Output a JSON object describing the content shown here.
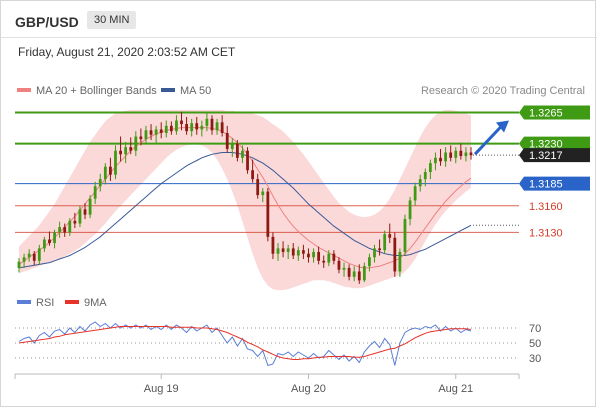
{
  "header": {
    "symbol": "GBP/USD",
    "timeframe": "30 MIN"
  },
  "datetime": "Friday, August 21, 2020 2:03:52 AM CET",
  "legend": {
    "ma20": {
      "label": "MA 20 + Bollinger Bands",
      "color": "#f08080"
    },
    "ma50": {
      "label": "MA 50",
      "color": "#3a5a96"
    },
    "credit": "Research © 2020 Trading Central"
  },
  "rsi_legend": {
    "rsi": {
      "label": "RSI",
      "color": "#5b7fd6"
    },
    "ma9": {
      "label": "9MA",
      "color": "#e8332a"
    }
  },
  "colors": {
    "green": "#3f9a14",
    "blue": "#2a64c8",
    "red": "#d23d2a",
    "up_candle": "#3f9a14",
    "down_candle": "#8c1a12",
    "band_fill": "#fbd9d9"
  },
  "chart_data": [
    {
      "type": "candlestick",
      "title": "GBP/USD 30 MIN",
      "x_ticks": [
        "Aug 19",
        "Aug 20",
        "Aug 21"
      ],
      "x_tick_index": [
        28,
        57,
        86
      ],
      "ylim": [
        1.3064,
        1.3278
      ],
      "levels": [
        {
          "value": 1.3265,
          "label": "1.3265",
          "kind": "resistance"
        },
        {
          "value": 1.323,
          "label": "1.3230",
          "kind": "resistance"
        },
        {
          "value": 1.3217,
          "label": "1.3217",
          "kind": "last"
        },
        {
          "value": 1.3185,
          "label": "1.3185",
          "kind": "pivot"
        },
        {
          "value": 1.316,
          "label": "1.3160",
          "kind": "support"
        },
        {
          "value": 1.313,
          "label": "1.3130",
          "kind": "support"
        }
      ],
      "last_price": 1.3217,
      "forecast": {
        "direction": "up",
        "target": 1.3265
      },
      "candles": [
        [
          1.309,
          1.3101,
          1.3085,
          1.3097
        ],
        [
          1.3097,
          1.3106,
          1.309,
          1.3102
        ],
        [
          1.3102,
          1.3111,
          1.3097,
          1.3106
        ],
        [
          1.3106,
          1.3109,
          1.3093,
          1.3098
        ],
        [
          1.3098,
          1.3116,
          1.3094,
          1.3112
        ],
        [
          1.3112,
          1.3125,
          1.3108,
          1.3122
        ],
        [
          1.3122,
          1.3131,
          1.3115,
          1.3118
        ],
        [
          1.3118,
          1.3133,
          1.3112,
          1.313
        ],
        [
          1.313,
          1.3142,
          1.3124,
          1.3136
        ],
        [
          1.3136,
          1.314,
          1.3125,
          1.313
        ],
        [
          1.313,
          1.3146,
          1.3126,
          1.3143
        ],
        [
          1.3143,
          1.3152,
          1.3135,
          1.314
        ],
        [
          1.314,
          1.316,
          1.3136,
          1.3156
        ],
        [
          1.3156,
          1.3163,
          1.3145,
          1.315
        ],
        [
          1.315,
          1.3172,
          1.3146,
          1.3168
        ],
        [
          1.3168,
          1.3187,
          1.3162,
          1.3182
        ],
        [
          1.3182,
          1.3196,
          1.3176,
          1.319
        ],
        [
          1.319,
          1.3208,
          1.3184,
          1.3204
        ],
        [
          1.3204,
          1.3214,
          1.3188,
          1.3195
        ],
        [
          1.3195,
          1.3228,
          1.319,
          1.3222
        ],
        [
          1.3222,
          1.3238,
          1.321,
          1.3218
        ],
        [
          1.3218,
          1.3232,
          1.3208,
          1.3226
        ],
        [
          1.3226,
          1.3237,
          1.3218,
          1.3222
        ],
        [
          1.3222,
          1.3244,
          1.3216,
          1.3238
        ],
        [
          1.3238,
          1.3247,
          1.3228,
          1.3235
        ],
        [
          1.3235,
          1.325,
          1.323,
          1.3245
        ],
        [
          1.3245,
          1.3252,
          1.3234,
          1.324
        ],
        [
          1.324,
          1.325,
          1.3231,
          1.3246
        ],
        [
          1.3246,
          1.3254,
          1.3236,
          1.3242
        ],
        [
          1.3242,
          1.3256,
          1.3237,
          1.325
        ],
        [
          1.325,
          1.3255,
          1.324,
          1.3244
        ],
        [
          1.3244,
          1.3262,
          1.324,
          1.3256
        ],
        [
          1.3256,
          1.3266,
          1.3245,
          1.3252
        ],
        [
          1.3252,
          1.326,
          1.324,
          1.3244
        ],
        [
          1.3244,
          1.3258,
          1.3238,
          1.3253
        ],
        [
          1.3253,
          1.326,
          1.324,
          1.3246
        ],
        [
          1.3246,
          1.3256,
          1.3238,
          1.325
        ],
        [
          1.325,
          1.3266,
          1.3244,
          1.3258
        ],
        [
          1.3258,
          1.3262,
          1.324,
          1.3245
        ],
        [
          1.3245,
          1.3258,
          1.324,
          1.3254
        ],
        [
          1.3254,
          1.3262,
          1.3238,
          1.3242
        ],
        [
          1.3242,
          1.325,
          1.322,
          1.3224
        ],
        [
          1.3224,
          1.3236,
          1.3215,
          1.323
        ],
        [
          1.323,
          1.3234,
          1.321,
          1.3214
        ],
        [
          1.3214,
          1.3228,
          1.3208,
          1.3222
        ],
        [
          1.3222,
          1.3226,
          1.3196,
          1.32
        ],
        [
          1.32,
          1.3212,
          1.3186,
          1.319
        ],
        [
          1.319,
          1.3196,
          1.3168,
          1.3172
        ],
        [
          1.3172,
          1.318,
          1.3164,
          1.3176
        ],
        [
          1.3176,
          1.318,
          1.312,
          1.3125
        ],
        [
          1.3125,
          1.313,
          1.31,
          1.3106
        ],
        [
          1.3106,
          1.3118,
          1.3098,
          1.3112
        ],
        [
          1.3112,
          1.312,
          1.3102,
          1.3108
        ],
        [
          1.3108,
          1.3116,
          1.31,
          1.3112
        ],
        [
          1.3112,
          1.3118,
          1.31,
          1.3104
        ],
        [
          1.3104,
          1.3114,
          1.3098,
          1.311
        ],
        [
          1.311,
          1.3116,
          1.31,
          1.3106
        ],
        [
          1.3106,
          1.3112,
          1.3096,
          1.3102
        ],
        [
          1.3102,
          1.3112,
          1.3096,
          1.3108
        ],
        [
          1.3108,
          1.3114,
          1.3094,
          1.3098
        ],
        [
          1.3098,
          1.3104,
          1.309,
          1.3096
        ],
        [
          1.3096,
          1.311,
          1.3092,
          1.3106
        ],
        [
          1.3106,
          1.311,
          1.3094,
          1.3098
        ],
        [
          1.3098,
          1.3102,
          1.3084,
          1.3088
        ],
        [
          1.3088,
          1.3096,
          1.308,
          1.309
        ],
        [
          1.309,
          1.3094,
          1.3076,
          1.308
        ],
        [
          1.308,
          1.3092,
          1.3075,
          1.3086
        ],
        [
          1.3086,
          1.3094,
          1.3072,
          1.3076
        ],
        [
          1.3076,
          1.3096,
          1.3074,
          1.3092
        ],
        [
          1.3092,
          1.3106,
          1.3086,
          1.3102
        ],
        [
          1.3102,
          1.3116,
          1.3096,
          1.3112
        ],
        [
          1.3112,
          1.3122,
          1.3104,
          1.311
        ],
        [
          1.311,
          1.3132,
          1.3106,
          1.3128
        ],
        [
          1.3128,
          1.314,
          1.3118,
          1.3124
        ],
        [
          1.3124,
          1.313,
          1.308,
          1.3086
        ],
        [
          1.3086,
          1.3112,
          1.308,
          1.3108
        ],
        [
          1.3108,
          1.315,
          1.3104,
          1.3145
        ],
        [
          1.3145,
          1.317,
          1.3138,
          1.3166
        ],
        [
          1.3166,
          1.3186,
          1.316,
          1.3182
        ],
        [
          1.3182,
          1.3195,
          1.3176,
          1.319
        ],
        [
          1.319,
          1.3202,
          1.3182,
          1.3198
        ],
        [
          1.3198,
          1.3212,
          1.319,
          1.3208
        ],
        [
          1.3208,
          1.322,
          1.32,
          1.3214
        ],
        [
          1.3214,
          1.3224,
          1.3205,
          1.321
        ],
        [
          1.321,
          1.3226,
          1.3204,
          1.322
        ],
        [
          1.322,
          1.3228,
          1.321,
          1.3214
        ],
        [
          1.3214,
          1.3226,
          1.3208,
          1.3222
        ],
        [
          1.3222,
          1.323,
          1.3212,
          1.3216
        ],
        [
          1.3216,
          1.3226,
          1.321,
          1.322
        ],
        [
          1.322,
          1.3226,
          1.3212,
          1.3217
        ]
      ],
      "ma20": [
        1.3094,
        1.3098,
        1.3102,
        1.3106,
        1.311,
        1.3114,
        1.3119,
        1.3124,
        1.313,
        1.3136,
        1.3142,
        1.3148,
        1.3155,
        1.3162,
        1.3169,
        1.3176,
        1.3183,
        1.319,
        1.3197,
        1.3204,
        1.321,
        1.3216,
        1.3222,
        1.3227,
        1.3231,
        1.3235,
        1.3238,
        1.3241,
        1.3243,
        1.3245,
        1.3246,
        1.3247,
        1.3248,
        1.3248,
        1.3248,
        1.3248,
        1.3248,
        1.3248,
        1.3247,
        1.3246,
        1.3244,
        1.324,
        1.3236,
        1.3231,
        1.3225,
        1.3218,
        1.321,
        1.3201,
        1.3192,
        1.3182,
        1.3171,
        1.3161,
        1.3152,
        1.3144,
        1.3137,
        1.3131,
        1.3126,
        1.3121,
        1.3117,
        1.3113,
        1.311,
        1.3107,
        1.3104,
        1.3101,
        1.3098,
        1.3095,
        1.3093,
        1.3091,
        1.309,
        1.309,
        1.3091,
        1.3092,
        1.3094,
        1.3096,
        1.3098,
        1.3101,
        1.3106,
        1.3112,
        1.3119,
        1.3127,
        1.3135,
        1.3143,
        1.3151,
        1.3158,
        1.3165,
        1.3171,
        1.3177,
        1.3182,
        1.3187,
        1.3191
      ],
      "bb_upper": [
        1.3114,
        1.312,
        1.3126,
        1.3132,
        1.3138,
        1.3146,
        1.3154,
        1.3162,
        1.3172,
        1.3182,
        1.3192,
        1.3202,
        1.3212,
        1.3222,
        1.3232,
        1.324,
        1.3248,
        1.3255,
        1.326,
        1.3264,
        1.3266,
        1.3267,
        1.3268,
        1.3268,
        1.3268,
        1.3268,
        1.3268,
        1.3268,
        1.3268,
        1.3268,
        1.3268,
        1.3268,
        1.3268,
        1.3268,
        1.3268,
        1.3268,
        1.3268,
        1.3268,
        1.3268,
        1.3268,
        1.3268,
        1.3267,
        1.3267,
        1.3266,
        1.3266,
        1.3265,
        1.3264,
        1.3262,
        1.326,
        1.3256,
        1.3252,
        1.3248,
        1.3244,
        1.3238,
        1.3232,
        1.3225,
        1.3218,
        1.321,
        1.3202,
        1.3194,
        1.3186,
        1.3178,
        1.317,
        1.3163,
        1.3158,
        1.3153,
        1.315,
        1.3148,
        1.3147,
        1.3148,
        1.315,
        1.3154,
        1.316,
        1.3168,
        1.3178,
        1.319,
        1.3202,
        1.3214,
        1.3226,
        1.3238,
        1.3248,
        1.3256,
        1.3262,
        1.3266,
        1.3268,
        1.3268,
        1.3267,
        1.3266,
        1.3264,
        1.3262
      ],
      "bb_lower": [
        1.3084,
        1.3086,
        1.3088,
        1.309,
        1.3092,
        1.3094,
        1.3096,
        1.3098,
        1.31,
        1.3103,
        1.3106,
        1.3109,
        1.3113,
        1.3118,
        1.3123,
        1.3128,
        1.3134,
        1.314,
        1.3147,
        1.3154,
        1.316,
        1.3166,
        1.3172,
        1.3178,
        1.3184,
        1.319,
        1.3196,
        1.3202,
        1.3208,
        1.3214,
        1.3219,
        1.3223,
        1.3226,
        1.3228,
        1.3229,
        1.3229,
        1.3228,
        1.3225,
        1.322,
        1.3212,
        1.3202,
        1.319,
        1.3176,
        1.316,
        1.3142,
        1.3124,
        1.3106,
        1.309,
        1.3078,
        1.307,
        1.3066,
        1.3065,
        1.3065,
        1.3066,
        1.3068,
        1.307,
        1.3072,
        1.3074,
        1.3076,
        1.3076,
        1.3076,
        1.3075,
        1.3073,
        1.3071,
        1.3069,
        1.3068,
        1.3067,
        1.3067,
        1.3068,
        1.307,
        1.3072,
        1.3074,
        1.3076,
        1.3078,
        1.308,
        1.3082,
        1.3086,
        1.3092,
        1.31,
        1.311,
        1.312,
        1.313,
        1.3139,
        1.3147,
        1.3154,
        1.316,
        1.3166,
        1.3171,
        1.3176,
        1.318
      ],
      "ma50": [
        1.309,
        1.3091,
        1.3092,
        1.3093,
        1.3094,
        1.3095,
        1.3096,
        1.3098,
        1.31,
        1.3102,
        1.3104,
        1.3107,
        1.311,
        1.3113,
        1.3117,
        1.3121,
        1.3125,
        1.313,
        1.3135,
        1.314,
        1.3145,
        1.315,
        1.3155,
        1.316,
        1.3165,
        1.317,
        1.3175,
        1.318,
        1.3185,
        1.3189,
        1.3193,
        1.3197,
        1.3201,
        1.3205,
        1.3208,
        1.3211,
        1.3214,
        1.3216,
        1.3218,
        1.3219,
        1.322,
        1.322,
        1.322,
        1.3219,
        1.3218,
        1.3216,
        1.3214,
        1.3211,
        1.3208,
        1.3204,
        1.32,
        1.3195,
        1.319,
        1.3185,
        1.318,
        1.3174,
        1.3168,
        1.3162,
        1.3157,
        1.3152,
        1.3147,
        1.3142,
        1.3137,
        1.3133,
        1.3129,
        1.3125,
        1.3121,
        1.3118,
        1.3115,
        1.3112,
        1.311,
        1.3108,
        1.3106,
        1.3105,
        1.3104,
        1.3104,
        1.3104,
        1.3105,
        1.3107,
        1.3109,
        1.3111,
        1.3114,
        1.3117,
        1.312,
        1.3123,
        1.3126,
        1.3129,
        1.3132,
        1.3135,
        1.3138
      ]
    },
    {
      "type": "line",
      "title": "RSI",
      "y_ticks": [
        70,
        50,
        30
      ],
      "ylim": [
        10,
        90
      ],
      "series": [
        {
          "name": "RSI",
          "values": [
            52,
            56,
            58,
            50,
            60,
            64,
            58,
            66,
            68,
            62,
            70,
            64,
            72,
            66,
            74,
            78,
            72,
            76,
            70,
            76,
            70,
            74,
            70,
            74,
            70,
            74,
            68,
            72,
            68,
            74,
            68,
            74,
            70,
            64,
            72,
            66,
            70,
            74,
            64,
            70,
            60,
            50,
            58,
            46,
            56,
            42,
            40,
            32,
            40,
            20,
            22,
            36,
            34,
            38,
            32,
            38,
            34,
            30,
            36,
            30,
            32,
            40,
            34,
            28,
            34,
            26,
            32,
            24,
            38,
            46,
            52,
            44,
            56,
            48,
            20,
            50,
            64,
            68,
            70,
            68,
            72,
            70,
            74,
            66,
            72,
            66,
            70,
            64,
            68,
            66
          ]
        },
        {
          "name": "9MA",
          "values": [
            50,
            51,
            52,
            53,
            54,
            55,
            56,
            58,
            59,
            61,
            62,
            63,
            64,
            65,
            66,
            67,
            68,
            69,
            70,
            71,
            72,
            72,
            72,
            72,
            72,
            72,
            72,
            72,
            72,
            72,
            71,
            71,
            71,
            71,
            71,
            70,
            70,
            70,
            69,
            68,
            66,
            64,
            61,
            58,
            55,
            51,
            48,
            45,
            41,
            38,
            35,
            32,
            30,
            29,
            28,
            28,
            29,
            29,
            30,
            31,
            31,
            32,
            32,
            32,
            32,
            32,
            31,
            31,
            32,
            34,
            36,
            38,
            40,
            42,
            43,
            46,
            49,
            53,
            57,
            60,
            63,
            65,
            66,
            67,
            68,
            69,
            69,
            69,
            69,
            68
          ]
        }
      ]
    }
  ]
}
